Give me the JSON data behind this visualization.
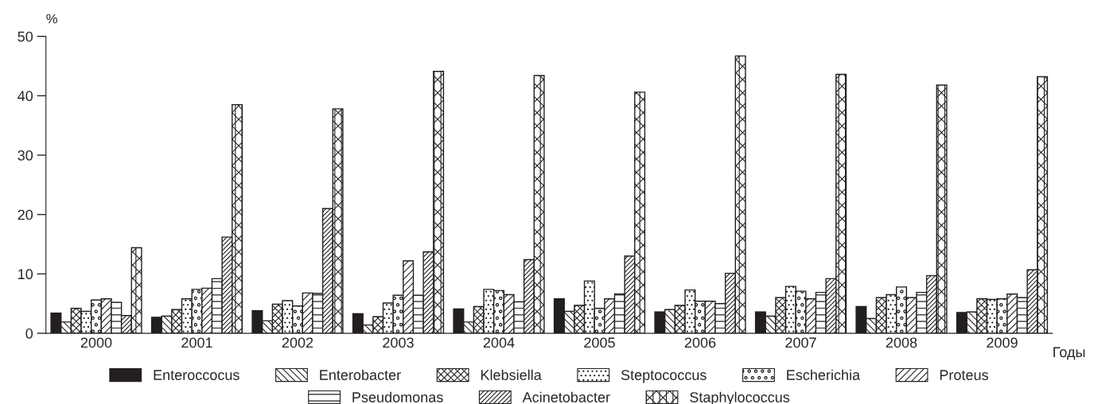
{
  "chart_data": {
    "type": "bar",
    "xlabel": "Годы",
    "ylabel": "%",
    "categories": [
      "2000",
      "2001",
      "2002",
      "2003",
      "2004",
      "2005",
      "2006",
      "2007",
      "2008",
      "2009"
    ],
    "ylim": [
      0,
      50
    ],
    "yticks": [
      0,
      10,
      20,
      30,
      40,
      50
    ],
    "grid": false,
    "legend": "bottom",
    "series": [
      {
        "name": "Enteroccocus",
        "color": "#231f20",
        "values": [
          3.4,
          2.7,
          3.8,
          3.3,
          4.1,
          5.8,
          3.6,
          3.6,
          4.5,
          3.5
        ]
      },
      {
        "name": "Enterobacter",
        "color": "#231f20",
        "values": [
          1.9,
          2.9,
          2.1,
          1.4,
          1.9,
          3.7,
          4.0,
          2.9,
          2.5,
          3.6
        ]
      },
      {
        "name": "Klebsiella",
        "color": "#231f20",
        "values": [
          4.2,
          4.0,
          4.9,
          2.8,
          4.5,
          4.7,
          4.7,
          6.0,
          6.0,
          5.8
        ]
      },
      {
        "name": "Steptococcus",
        "color": "#231f20",
        "values": [
          3.7,
          5.8,
          5.5,
          5.1,
          7.4,
          8.8,
          7.3,
          7.9,
          6.5,
          5.7
        ]
      },
      {
        "name": "Escherichia",
        "color": "#231f20",
        "values": [
          5.6,
          7.4,
          4.6,
          6.4,
          7.2,
          4.2,
          5.4,
          7.1,
          7.8,
          5.8
        ]
      },
      {
        "name": "Proteus",
        "color": "#231f20",
        "values": [
          5.8,
          7.6,
          6.8,
          12.2,
          6.5,
          5.8,
          5.4,
          5.8,
          6.0,
          6.6
        ]
      },
      {
        "name": "Pseudomonas",
        "color": "#231f20",
        "values": [
          5.2,
          9.2,
          6.7,
          6.4,
          5.3,
          6.6,
          5.0,
          6.9,
          6.9,
          6.0
        ]
      },
      {
        "name": "Acinetobacter",
        "color": "#231f20",
        "values": [
          3.0,
          16.2,
          21.0,
          13.7,
          12.4,
          13.0,
          10.1,
          9.2,
          9.7,
          10.7
        ]
      },
      {
        "name": "Staphylococcus",
        "color": "#231f20",
        "values": [
          14.4,
          38.5,
          37.8,
          44.1,
          43.4,
          40.6,
          46.7,
          43.6,
          41.8,
          43.2
        ]
      }
    ]
  }
}
